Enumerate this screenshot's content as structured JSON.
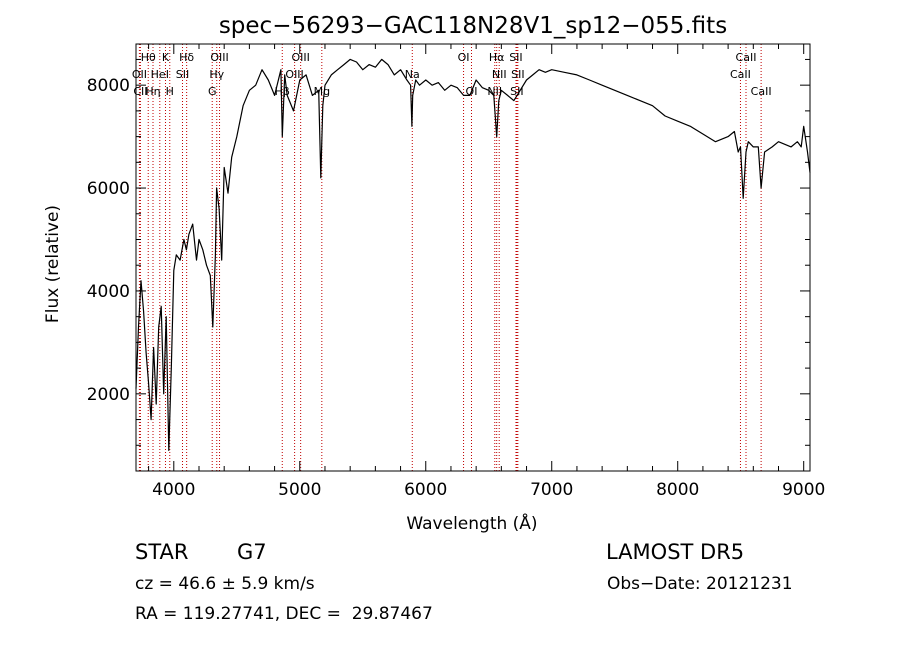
{
  "chart_data": {
    "type": "line",
    "title": "spec−56293−GAC118N28V1_sp12−055.fits",
    "xlabel": "Wavelength (Å)",
    "ylabel": "Flux (relative)",
    "xlim": [
      3700,
      9050
    ],
    "ylim": [
      500,
      8800
    ],
    "xticks": [
      4000,
      5000,
      6000,
      7000,
      8000,
      9000
    ],
    "yticks": [
      2000,
      4000,
      6000,
      8000
    ],
    "grid": false,
    "series": [
      {
        "color": "#000000",
        "x": [
          3700,
          3720,
          3740,
          3760,
          3780,
          3800,
          3820,
          3840,
          3860,
          3880,
          3900,
          3920,
          3940,
          3960,
          3980,
          4000,
          4020,
          4050,
          4080,
          4100,
          4120,
          4150,
          4180,
          4200,
          4230,
          4260,
          4290,
          4310,
          4330,
          4340,
          4360,
          4380,
          4400,
          4430,
          4460,
          4500,
          4550,
          4600,
          4650,
          4700,
          4750,
          4800,
          4850,
          4861,
          4880,
          4900,
          4950,
          5000,
          5050,
          5100,
          5150,
          5167,
          5183,
          5200,
          5250,
          5300,
          5350,
          5400,
          5450,
          5500,
          5550,
          5600,
          5650,
          5700,
          5750,
          5800,
          5850,
          5880,
          5890,
          5896,
          5920,
          5950,
          6000,
          6050,
          6100,
          6150,
          6200,
          6250,
          6300,
          6350,
          6400,
          6450,
          6500,
          6540,
          6563,
          6580,
          6600,
          6650,
          6700,
          6750,
          6800,
          6850,
          6900,
          6950,
          7000,
          7100,
          7200,
          7300,
          7400,
          7500,
          7600,
          7700,
          7800,
          7900,
          8000,
          8100,
          8200,
          8300,
          8400,
          8450,
          8480,
          8498,
          8520,
          8542,
          8560,
          8600,
          8640,
          8662,
          8690,
          8750,
          8800,
          8850,
          8900,
          8950,
          8980,
          9000,
          9030,
          9050
        ],
        "y": [
          2100,
          3300,
          4200,
          3600,
          2800,
          2200,
          1500,
          2900,
          1800,
          3300,
          3700,
          2000,
          3500,
          900,
          2500,
          4400,
          4700,
          4600,
          5000,
          4800,
          5100,
          5300,
          4600,
          5000,
          4800,
          4500,
          4300,
          3300,
          4700,
          6000,
          5600,
          4600,
          6400,
          5900,
          6600,
          7000,
          7600,
          7900,
          8000,
          8300,
          8100,
          7800,
          8300,
          7000,
          8200,
          7800,
          7500,
          8100,
          8200,
          7800,
          7900,
          6200,
          7600,
          8000,
          8200,
          8300,
          8400,
          8500,
          8450,
          8300,
          8400,
          8350,
          8500,
          8400,
          8200,
          8300,
          8100,
          8000,
          7200,
          7800,
          8100,
          8000,
          8100,
          8000,
          8050,
          7900,
          8000,
          7950,
          7800,
          7800,
          8100,
          7950,
          7900,
          7800,
          7000,
          7700,
          7900,
          7800,
          7700,
          7900,
          8100,
          8200,
          8300,
          8250,
          8300,
          8250,
          8200,
          8100,
          8000,
          7900,
          7800,
          7700,
          7600,
          7400,
          7300,
          7200,
          7050,
          6900,
          7000,
          7100,
          6700,
          6800,
          5800,
          6700,
          6900,
          6800,
          6800,
          6000,
          6700,
          6800,
          6900,
          6850,
          6800,
          6900,
          6800,
          7200,
          6700,
          6300
        ]
      }
    ],
    "lines": [
      {
        "label": "Hθ",
        "x": 3797,
        "row": 0
      },
      {
        "label": "OII",
        "x": 3727,
        "row": 1
      },
      {
        "label": "CII",
        "x": 3735,
        "row": 2
      },
      {
        "label": "Hη",
        "x": 3835,
        "row": 2
      },
      {
        "label": "K",
        "x": 3934,
        "row": 0
      },
      {
        "label": "HeI",
        "x": 3889,
        "row": 1
      },
      {
        "label": "H",
        "x": 3968,
        "row": 2
      },
      {
        "label": "Hδ",
        "x": 4102,
        "row": 0
      },
      {
        "label": "SII",
        "x": 4069,
        "row": 1
      },
      {
        "label": "OIII",
        "x": 4363,
        "row": 0
      },
      {
        "label": "Hγ",
        "x": 4341,
        "row": 1
      },
      {
        "label": "G",
        "x": 4305,
        "row": 2
      },
      {
        "label": "OIII",
        "x": 5007,
        "row": 0
      },
      {
        "label": "OIII",
        "x": 4959,
        "row": 1
      },
      {
        "label": "Hβ",
        "x": 4861,
        "row": 2
      },
      {
        "label": "Mg",
        "x": 5175,
        "row": 2
      },
      {
        "label": "Na",
        "x": 5893,
        "row": 1
      },
      {
        "label": "OI",
        "x": 6300,
        "row": 0
      },
      {
        "label": "OI",
        "x": 6363,
        "row": 2
      },
      {
        "label": "Hα",
        "x": 6563,
        "row": 0
      },
      {
        "label": "NII",
        "x": 6583,
        "row": 1
      },
      {
        "label": "NII",
        "x": 6548,
        "row": 2
      },
      {
        "label": "SII",
        "x": 6716,
        "row": 0
      },
      {
        "label": "SII",
        "x": 6731,
        "row": 1
      },
      {
        "label": "SII",
        "x": 6723,
        "row": 2
      },
      {
        "label": "CaII",
        "x": 8542,
        "row": 0
      },
      {
        "label": "CaII",
        "x": 8498,
        "row": 1
      },
      {
        "label": "CaII",
        "x": 8662,
        "row": 2
      }
    ]
  },
  "info": {
    "class": "STAR",
    "subclass": "G7",
    "survey": "LAMOST DR5",
    "cz": "cz = 46.6 ± 5.9 km/s",
    "obs_date": "Obs−Date: 20121231",
    "coords": "RA = 119.27741, DEC =  29.87467"
  }
}
